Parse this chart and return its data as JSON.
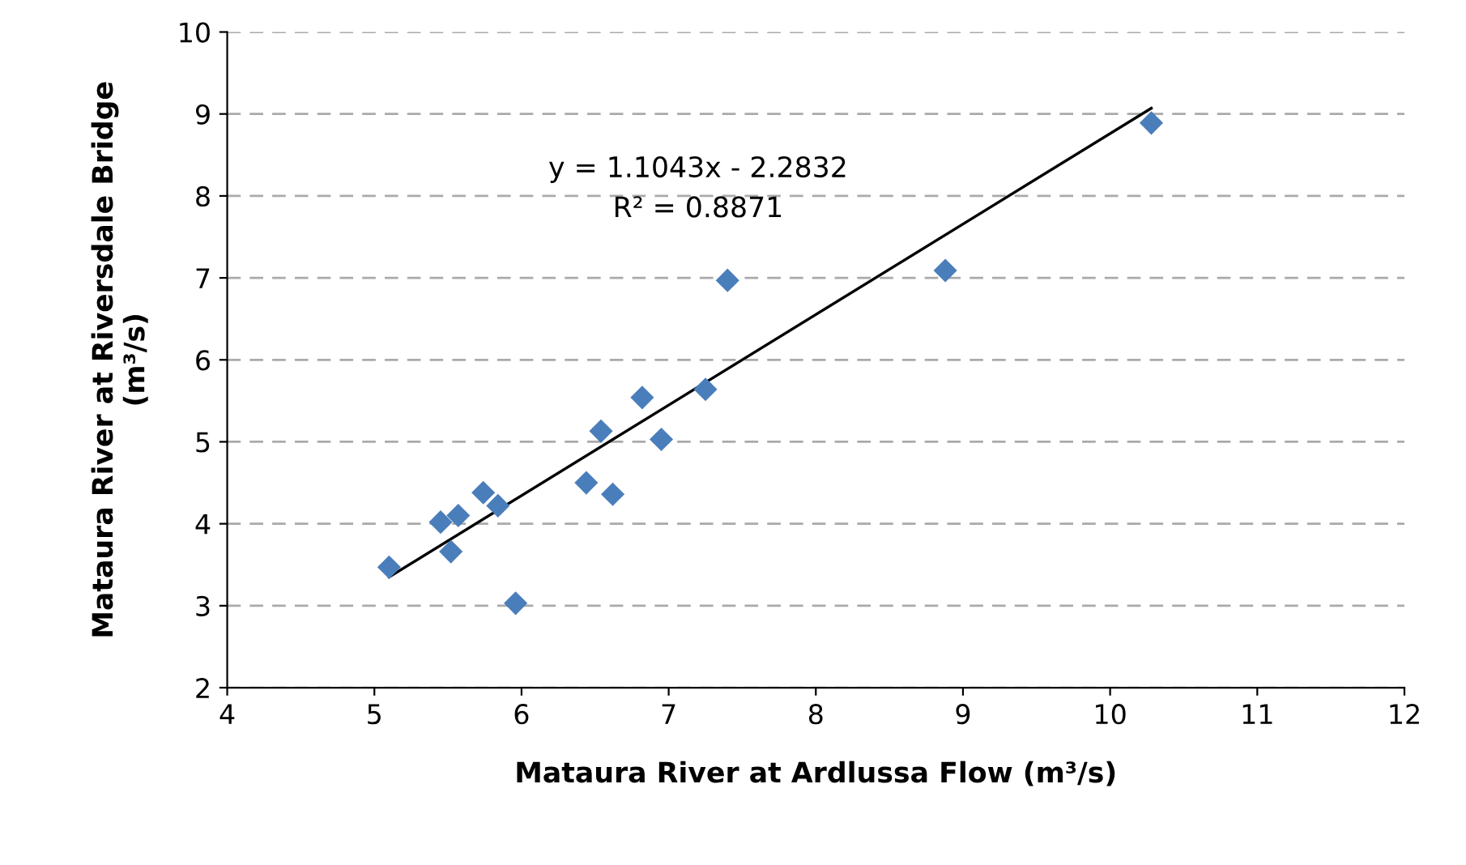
{
  "chart_data": {
    "type": "scatter",
    "xlabel": "Mataura River at Ardlussa Flow (m³/s)",
    "ylabel": "Mataura River at Riversdale Bridge\n(m³/s)",
    "x": [
      5.1,
      5.45,
      5.52,
      5.57,
      5.74,
      5.84,
      5.96,
      6.44,
      6.54,
      6.62,
      6.82,
      6.95,
      7.25,
      7.4,
      8.88,
      10.28
    ],
    "series": [
      {
        "color": "#4a7ebb",
        "marker": "diamond",
        "values": [
          3.47,
          4.02,
          3.66,
          4.1,
          4.38,
          4.22,
          3.03,
          4.5,
          5.13,
          4.36,
          5.54,
          5.03,
          5.64,
          6.97,
          7.09,
          8.89
        ]
      },
      {
        "type": "line",
        "color": "#000000",
        "marker": "none",
        "line_style": "solid",
        "x": [
          5.1,
          10.28
        ],
        "values": [
          3.35,
          9.07
        ]
      }
    ],
    "annotations": [
      "y = 1.1043x - 2.2832\nR² = 0.8871"
    ],
    "xlim": [
      4,
      12
    ],
    "ylim": [
      2,
      10
    ],
    "xticks": [
      4,
      5,
      6,
      7,
      8,
      9,
      10,
      11,
      12
    ],
    "yticks": [
      2,
      3,
      4,
      5,
      6,
      7,
      8,
      9,
      10
    ],
    "grid": "y",
    "legend": false
  }
}
